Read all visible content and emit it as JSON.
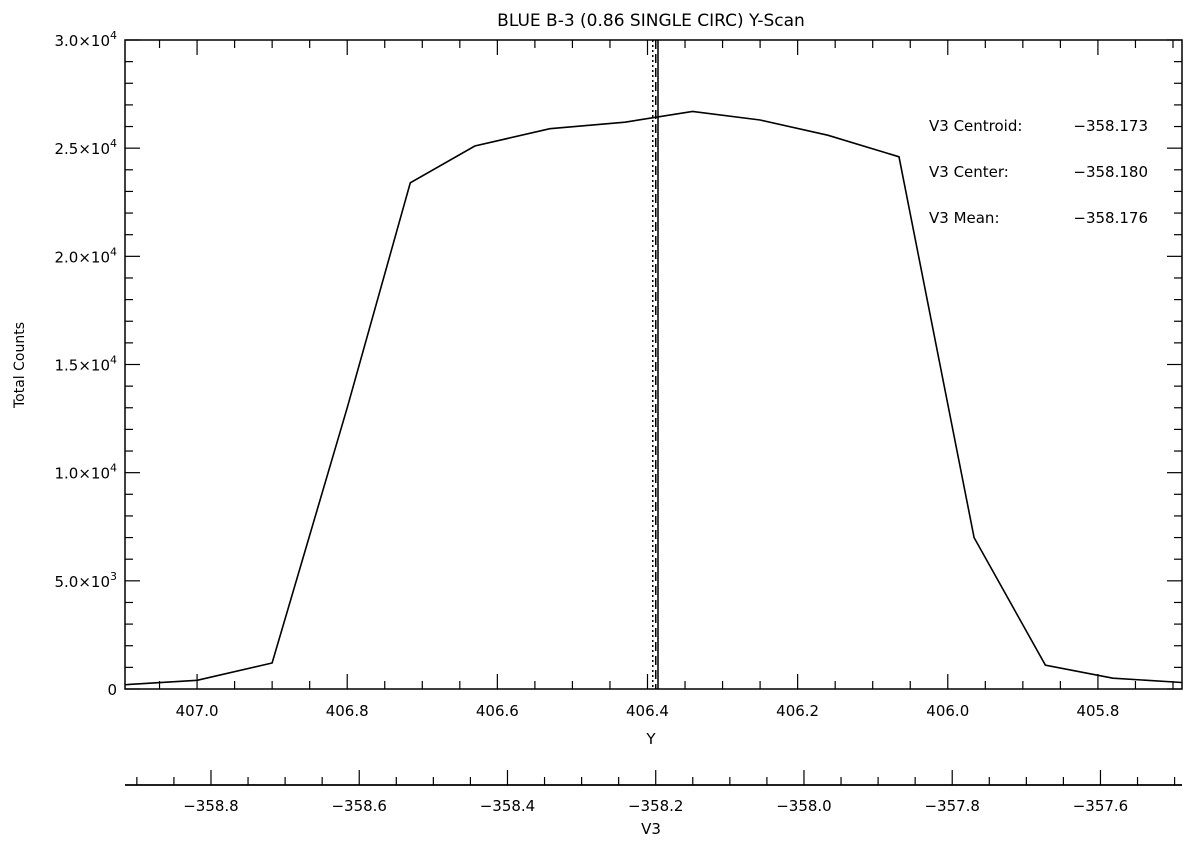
{
  "chart_data": {
    "type": "line",
    "title": "BLUE B-3 (0.86 SINGLE CIRC) Y-Scan",
    "xlabel": "Y",
    "ylabel": "Total Counts",
    "secondary_xlabel": "V3",
    "xlim": [
      407.096,
      405.688
    ],
    "ylim": [
      0,
      30000
    ],
    "grid": false,
    "x_ticks": [
      407.0,
      406.8,
      406.6,
      406.4,
      406.2,
      406.0,
      405.8
    ],
    "x_tick_labels": [
      "407.0",
      "406.8",
      "406.6",
      "406.4",
      "406.2",
      "406.0",
      "405.8"
    ],
    "y_ticks": [
      0,
      5000,
      10000,
      15000,
      20000,
      25000,
      30000
    ],
    "y_tick_labels": [
      {
        "mantissa": "0",
        "exponent": ""
      },
      {
        "mantissa": "5.0×10",
        "exponent": "3"
      },
      {
        "mantissa": "1.0×10",
        "exponent": "4"
      },
      {
        "mantissa": "1.5×10",
        "exponent": "4"
      },
      {
        "mantissa": "2.0×10",
        "exponent": "4"
      },
      {
        "mantissa": "2.5×10",
        "exponent": "4"
      },
      {
        "mantissa": "3.0×10",
        "exponent": "4"
      }
    ],
    "secondary_xlim": [
      -358.916,
      -357.49
    ],
    "secondary_ticks": [
      -358.8,
      -358.6,
      -358.4,
      -358.2,
      -358.0,
      -357.8,
      -357.6
    ],
    "secondary_tick_labels": [
      "−358.8",
      "−358.6",
      "−358.4",
      "−358.2",
      "−358.0",
      "−357.8",
      "−357.6"
    ],
    "series": [
      {
        "x": [
          407.096,
          407.0,
          406.9,
          406.8,
          406.716,
          406.63,
          406.53,
          406.43,
          406.34,
          406.25,
          406.16,
          406.065,
          405.965,
          405.87,
          405.78,
          405.688
        ],
        "y": [
          200,
          400,
          1200,
          13000,
          23400,
          25100,
          25900,
          26200,
          26700,
          26300,
          25600,
          24600,
          7000,
          1100,
          500,
          300
        ]
      }
    ],
    "vertical_lines": [
      {
        "x": 406.393,
        "style": "dotted"
      },
      {
        "x": 406.389,
        "style": "dashed"
      },
      {
        "x": 406.386,
        "style": "solid"
      }
    ],
    "annotations": [
      {
        "label": "V3 Centroid:",
        "value": "−358.173"
      },
      {
        "label": "V3 Center:",
        "value": "−358.180"
      },
      {
        "label": "V3 Mean:",
        "value": "−358.176"
      }
    ]
  }
}
